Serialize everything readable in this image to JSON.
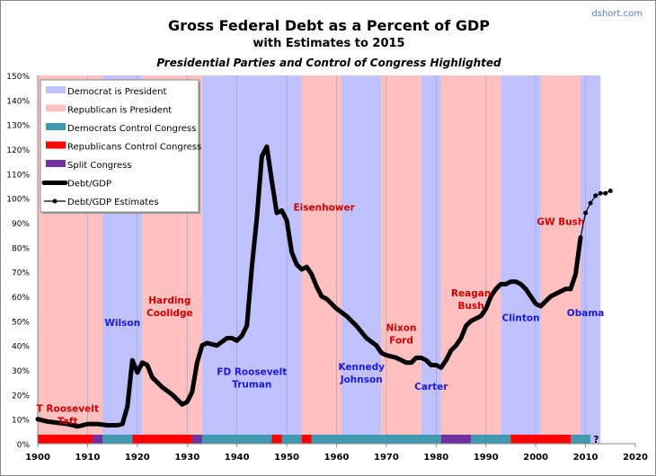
{
  "chart_data": {
    "type": "line",
    "title": "Gross Federal Debt as a Percent of GDP",
    "subtitle": "with Estimates to 2015",
    "subtitle2": "Presidential Parties and Control of Congress Highlighted",
    "source": "dshort.com",
    "xlim": [
      1900,
      2020
    ],
    "ylim": [
      0,
      150
    ],
    "x_ticks": [
      "1900",
      "1910",
      "1920",
      "1930",
      "1940",
      "1950",
      "1960",
      "1970",
      "1980",
      "1990",
      "2000",
      "2010",
      "2020"
    ],
    "y_ticks": [
      "0%",
      "10%",
      "20%",
      "30%",
      "40%",
      "50%",
      "60%",
      "70%",
      "80%",
      "90%",
      "100%",
      "110%",
      "120%",
      "130%",
      "140%",
      "150%"
    ],
    "colors": {
      "democrat_president": "#c0c0ff",
      "republican_president": "#ffc0c0",
      "dem_congress": "#4099b0",
      "rep_congress": "#ff0000",
      "split_congress": "#7030a0",
      "line": "#000000",
      "dem_label": "#1a1adc",
      "rep_label": "#cc0000"
    },
    "legend": {
      "placement": "top-left",
      "items": [
        "Democrat is President",
        "Republican is President",
        "Democrats Control Congress",
        "Republicans Control Congress",
        "Split Congress",
        "Debt/GDP",
        "Debt/GDP Estimates"
      ]
    },
    "presidents": [
      {
        "party": "R",
        "start": 1900,
        "end": 1913,
        "label": [
          "T Roosevelt",
          "Taft"
        ]
      },
      {
        "party": "D",
        "start": 1913,
        "end": 1921,
        "label": [
          "Wilson"
        ]
      },
      {
        "party": "R",
        "start": 1921,
        "end": 1933,
        "label": [
          "Harding",
          "Coolidge"
        ]
      },
      {
        "party": "D",
        "start": 1933,
        "end": 1953,
        "label": [
          "FD Roosevelt",
          "Truman"
        ]
      },
      {
        "party": "R",
        "start": 1953,
        "end": 1961,
        "label": [
          "Eisenhower"
        ]
      },
      {
        "party": "D",
        "start": 1961,
        "end": 1969,
        "label": [
          "Kennedy",
          "Johnson"
        ]
      },
      {
        "party": "R",
        "start": 1969,
        "end": 1977,
        "label": [
          "Nixon",
          "Ford"
        ]
      },
      {
        "party": "D",
        "start": 1977,
        "end": 1981,
        "label": [
          "Carter"
        ]
      },
      {
        "party": "R",
        "start": 1981,
        "end": 1993,
        "label": [
          "Reagan",
          "Bush"
        ]
      },
      {
        "party": "D",
        "start": 1993,
        "end": 2001,
        "label": [
          "Clinton"
        ]
      },
      {
        "party": "R",
        "start": 2001,
        "end": 2009,
        "label": [
          "GW Bush"
        ]
      },
      {
        "party": "D",
        "start": 2009,
        "end": 2013,
        "label": [
          "Obama"
        ]
      }
    ],
    "congress": [
      {
        "control": "R",
        "start": 1900,
        "end": 1911
      },
      {
        "control": "S",
        "start": 1911,
        "end": 1913
      },
      {
        "control": "D",
        "start": 1913,
        "end": 1919
      },
      {
        "control": "R",
        "start": 1919,
        "end": 1931
      },
      {
        "control": "S",
        "start": 1931,
        "end": 1933
      },
      {
        "control": "D",
        "start": 1933,
        "end": 1947
      },
      {
        "control": "R",
        "start": 1947,
        "end": 1949
      },
      {
        "control": "D",
        "start": 1949,
        "end": 1953
      },
      {
        "control": "R",
        "start": 1953,
        "end": 1955
      },
      {
        "control": "D",
        "start": 1955,
        "end": 1981
      },
      {
        "control": "S",
        "start": 1981,
        "end": 1987
      },
      {
        "control": "D",
        "start": 1987,
        "end": 1995
      },
      {
        "control": "R",
        "start": 1995,
        "end": 2007
      },
      {
        "control": "D",
        "start": 2007,
        "end": 2011
      }
    ],
    "congress_unknown_label": "?",
    "series": [
      {
        "name": "Debt/GDP",
        "x": [
          1900,
          1902,
          1904,
          1906,
          1908,
          1910,
          1912,
          1914,
          1916,
          1917,
          1918,
          1919,
          1920,
          1921,
          1922,
          1923,
          1925,
          1927,
          1929,
          1930,
          1931,
          1932,
          1933,
          1934,
          1936,
          1938,
          1939,
          1940,
          1941,
          1942,
          1943,
          1944,
          1945,
          1946,
          1947,
          1948,
          1949,
          1950,
          1951,
          1952,
          1953,
          1954,
          1955,
          1956,
          1957,
          1958,
          1960,
          1962,
          1964,
          1966,
          1968,
          1969,
          1970,
          1972,
          1974,
          1975,
          1976,
          1977,
          1978,
          1979,
          1980,
          1981,
          1982,
          1983,
          1984,
          1985,
          1986,
          1987,
          1988,
          1989,
          1990,
          1991,
          1992,
          1993,
          1994,
          1995,
          1996,
          1997,
          1998,
          1999,
          2000,
          2001,
          2002,
          2003,
          2004,
          2005,
          2006,
          2007,
          2008,
          2009
        ],
        "values": [
          10,
          9,
          8.5,
          8,
          7,
          8,
          8,
          7.5,
          7.5,
          8,
          15,
          34,
          29,
          33,
          32,
          27,
          23,
          20,
          16,
          17,
          21,
          33,
          40,
          41,
          40,
          43,
          43,
          42,
          44,
          48,
          72,
          92,
          117,
          121,
          107,
          94,
          95,
          91,
          78,
          73,
          71,
          72,
          69,
          64,
          60,
          59,
          55,
          52,
          48,
          43,
          40,
          37,
          36,
          35,
          33,
          33,
          35,
          35,
          34,
          32,
          32,
          31,
          34,
          38,
          40,
          43,
          48,
          50,
          51,
          52,
          55,
          60,
          63,
          65,
          65,
          66,
          66,
          65,
          63,
          60,
          57,
          56,
          58,
          60,
          61,
          62,
          63,
          63,
          69,
          84
        ]
      },
      {
        "name": "Debt/GDP Estimates",
        "x": [
          2009,
          2010,
          2011,
          2012,
          2013,
          2014,
          2015
        ],
        "values": [
          84,
          94,
          98,
          101,
          102,
          102,
          103
        ]
      }
    ]
  }
}
